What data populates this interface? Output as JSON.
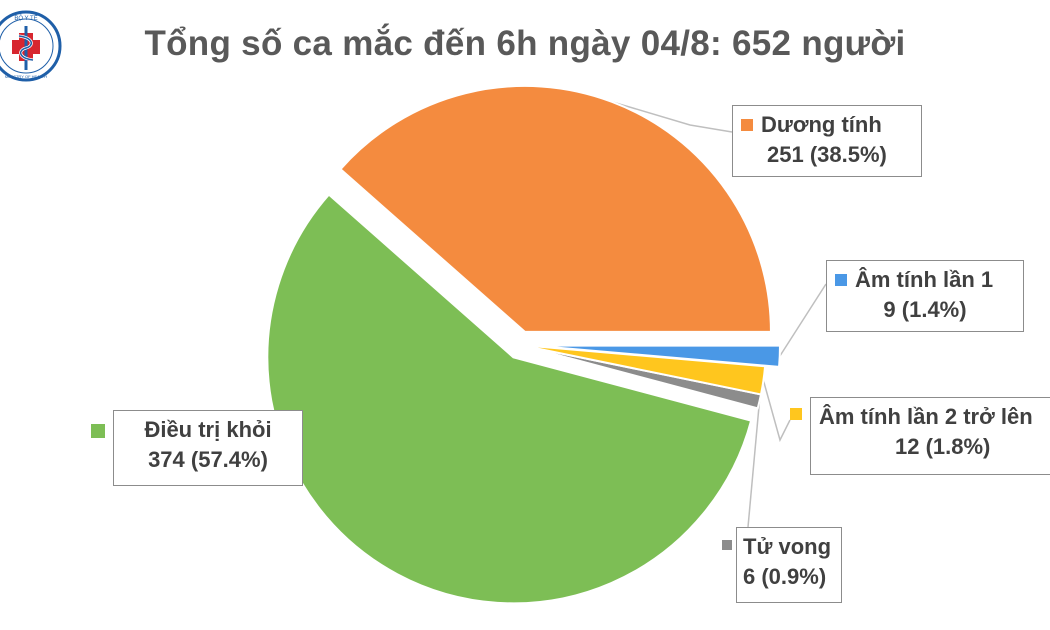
{
  "chart_data": {
    "type": "pie",
    "title": "Tổng số ca mắc đến 6h ngày 04/8: 652 người",
    "total": 652,
    "start_angle_deg": 0,
    "direction": "counterclockwise",
    "slices": [
      {
        "key": "duong",
        "name": "Dương tính",
        "value": 251,
        "value_label": "251 (38.5%)",
        "color": "#F48B3F",
        "exploded": true
      },
      {
        "key": "dieutri",
        "name": "Điều trị khỏi",
        "value": 374,
        "value_label": "374 (57.4%)",
        "color": "#7DBE55",
        "exploded": true
      },
      {
        "key": "tuvong",
        "name": "Tử vong",
        "value": 6,
        "value_label": "6 (0.9%)",
        "color": "#8C8C8C",
        "exploded": false
      },
      {
        "key": "am2",
        "name": "Âm tính lần 2 trở lên",
        "value": 12,
        "value_label": "12 (1.8%)",
        "color": "#FFC61E",
        "exploded": false
      },
      {
        "key": "am1",
        "name": "Âm tính lần 1",
        "value": 9,
        "value_label": "9 (1.4%)",
        "color": "#4A98E6",
        "exploded": true
      }
    ]
  },
  "logo": {
    "text": "BỘ Y TẾ",
    "subtext": "MINISTRY OF HEALTH"
  },
  "colors": {
    "title": "#595959",
    "label_text": "#404040",
    "label_border": "#8c8c8c",
    "logo_blue": "#1f5fa8",
    "logo_red": "#d7262f"
  }
}
